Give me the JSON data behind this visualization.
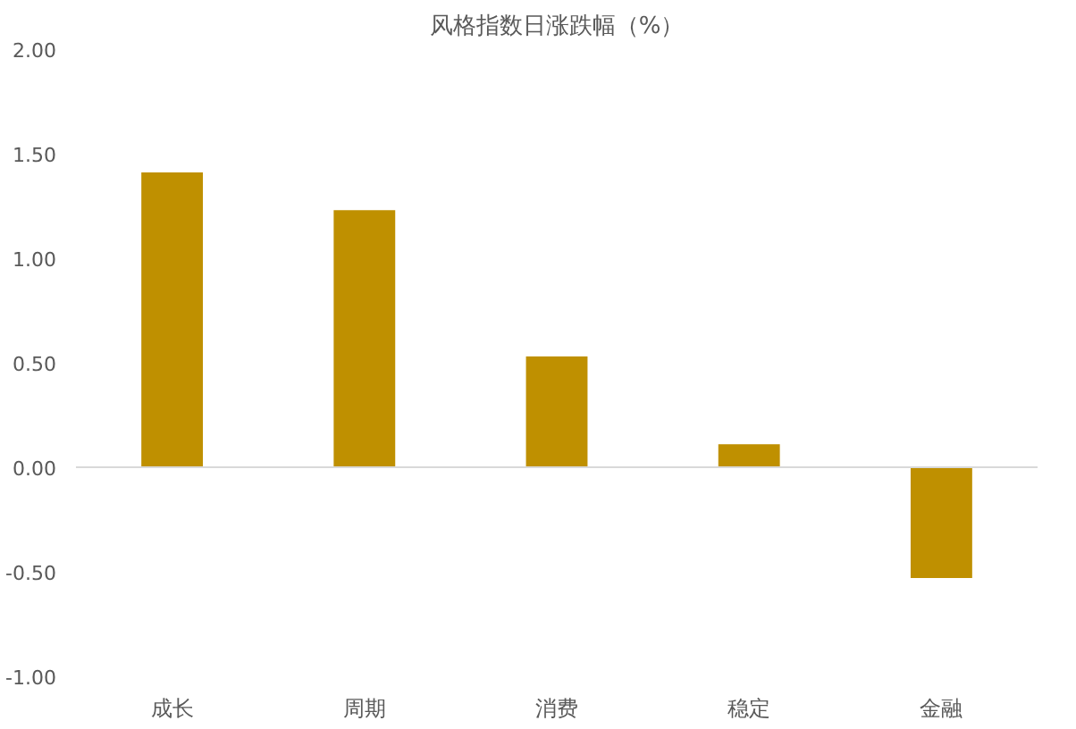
{
  "chart_data": {
    "type": "bar",
    "title": "风格指数日涨跌幅（%）",
    "categories": [
      "成长",
      "周期",
      "消费",
      "稳定",
      "金融"
    ],
    "values": [
      1.41,
      1.23,
      0.53,
      0.11,
      -0.53
    ],
    "color": "#bf9000",
    "ylim": [
      -1,
      2
    ],
    "yticks": [
      {
        "value": -1,
        "label": "-1.00"
      },
      {
        "value": -0.5,
        "label": "-0.50"
      },
      {
        "value": 0,
        "label": "0.00"
      },
      {
        "value": 0.5,
        "label": "0.50"
      },
      {
        "value": 1,
        "label": "1.00"
      },
      {
        "value": 1.5,
        "label": "1.50"
      },
      {
        "value": 2,
        "label": "2.00"
      }
    ]
  }
}
